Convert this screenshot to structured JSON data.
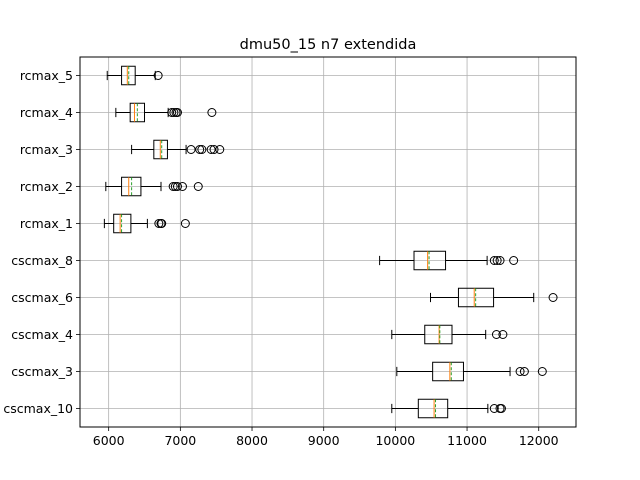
{
  "chart_data": {
    "type": "boxplot",
    "orientation": "horizontal",
    "title": "dmu50_15 n7 extendida",
    "xlabel": "",
    "ylabel": "",
    "xlim": [
      5600,
      12520
    ],
    "xticks": [
      6000,
      7000,
      8000,
      9000,
      10000,
      11000,
      12000
    ],
    "grid": true,
    "colors": {
      "median": "#ff7f0e",
      "mean": "#2ca02c",
      "box": "#000000",
      "grid": "#b0b0b0"
    },
    "categories": [
      "cscmax_10",
      "cscmax_3",
      "cscmax_4",
      "cscmax_6",
      "cscmax_8",
      "rcmax_1",
      "rcmax_2",
      "rcmax_3",
      "rcmax_4",
      "rcmax_5"
    ],
    "boxes": [
      {
        "label": "cscmax_10",
        "whisker_low": 9950,
        "q1": 10320,
        "median": 10540,
        "mean": 10560,
        "q3": 10730,
        "whisker_high": 11290,
        "fliers": [
          11380,
          11460,
          11480
        ]
      },
      {
        "label": "cscmax_3",
        "whisker_low": 10020,
        "q1": 10520,
        "median": 10760,
        "mean": 10780,
        "q3": 10950,
        "whisker_high": 11600,
        "fliers": [
          11740,
          11800,
          12050
        ]
      },
      {
        "label": "cscmax_4",
        "whisker_low": 9950,
        "q1": 10410,
        "median": 10610,
        "mean": 10620,
        "q3": 10790,
        "whisker_high": 11260,
        "fliers": [
          11410,
          11500
        ]
      },
      {
        "label": "cscmax_6",
        "whisker_low": 10490,
        "q1": 10880,
        "median": 11100,
        "mean": 11120,
        "q3": 11370,
        "whisker_high": 11930,
        "fliers": [
          12200
        ]
      },
      {
        "label": "cscmax_8",
        "whisker_low": 9780,
        "q1": 10260,
        "median": 10450,
        "mean": 10470,
        "q3": 10700,
        "whisker_high": 11280,
        "fliers": [
          11380,
          11420,
          11460,
          11650
        ]
      },
      {
        "label": "rcmax_1",
        "whisker_low": 5940,
        "q1": 6070,
        "median": 6160,
        "mean": 6180,
        "q3": 6310,
        "whisker_high": 6540,
        "fliers": [
          6700,
          6730,
          6740,
          7070
        ]
      },
      {
        "label": "rcmax_2",
        "whisker_low": 5960,
        "q1": 6180,
        "median": 6280,
        "mean": 6320,
        "q3": 6450,
        "whisker_high": 6730,
        "fliers": [
          6900,
          6930,
          6960,
          7030,
          7250
        ]
      },
      {
        "label": "rcmax_3",
        "whisker_low": 6320,
        "q1": 6630,
        "median": 6720,
        "mean": 6740,
        "q3": 6820,
        "whisker_high": 7080,
        "fliers": [
          7150,
          7270,
          7300,
          7430,
          7470,
          7550
        ]
      },
      {
        "label": "rcmax_4",
        "whisker_low": 6100,
        "q1": 6300,
        "median": 6360,
        "mean": 6400,
        "q3": 6500,
        "whisker_high": 6830,
        "fliers": [
          6880,
          6910,
          6940,
          6960,
          7440
        ]
      },
      {
        "label": "rcmax_5",
        "whisker_low": 5980,
        "q1": 6180,
        "median": 6260,
        "mean": 6280,
        "q3": 6370,
        "whisker_high": 6650,
        "fliers": [
          6690
        ]
      }
    ]
  }
}
